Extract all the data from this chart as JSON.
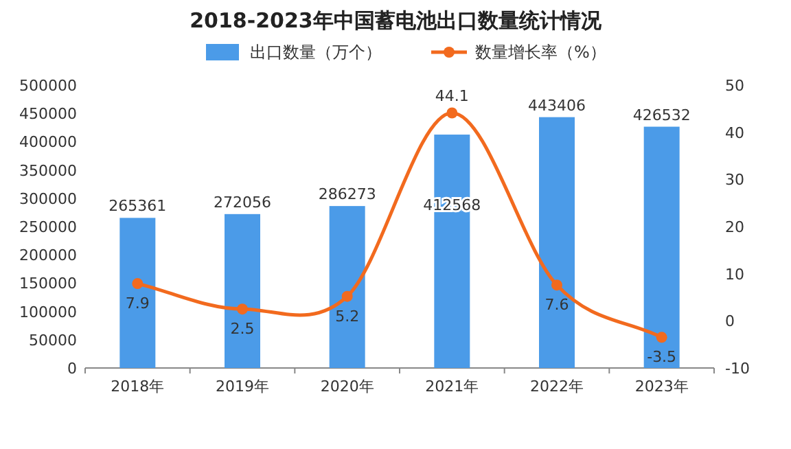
{
  "chart_data": {
    "type": "bar",
    "title": "2018-2023年中国蓄电池出口数量统计情况",
    "categories": [
      "2018年",
      "2019年",
      "2020年",
      "2021年",
      "2022年",
      "2023年"
    ],
    "series": [
      {
        "name": "出口数量（万个）",
        "color": "#4b9be8",
        "values": [
          265361,
          272056,
          286273,
          412568,
          443406,
          426532
        ]
      },
      {
        "name": "数量增长率（%）",
        "type": "line",
        "axis": "y2",
        "color": "#f26a1e",
        "values": [
          7.9,
          2.5,
          5.2,
          44.1,
          7.6,
          -3.5
        ]
      }
    ],
    "ylim": [
      0,
      500000
    ],
    "yticks": [
      0,
      50000,
      100000,
      150000,
      200000,
      250000,
      300000,
      350000,
      400000,
      450000,
      500000
    ],
    "y2lim": [
      -10,
      50
    ],
    "y2ticks": [
      -10,
      0,
      10,
      20,
      30,
      40,
      50
    ],
    "marker": "circle",
    "legend": "top",
    "data_labels": true
  }
}
